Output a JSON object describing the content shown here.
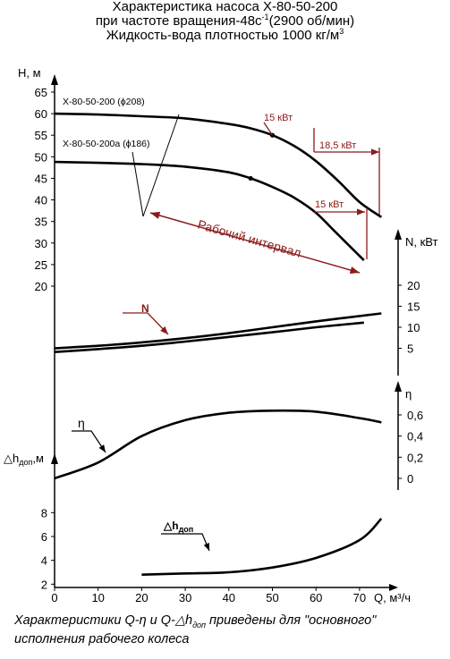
{
  "header": {
    "line1": "Характеристика насоса Х-80-50-200",
    "line2_pre": "при частоте вращения-48с",
    "line2_sup": "-1",
    "line2_post": "(2900 об/мин)",
    "line3_pre": "Жидкость-вода плотностью 1000 кг/м",
    "line3_sup": "3"
  },
  "footnote": {
    "line1_pre": "Характеристики Q-η и Q-△h",
    "line1_sub": "доп",
    "line1_post": " приведены для \"основного\"",
    "line2": "исполнения рабочего колеса"
  },
  "colors": {
    "curve": "#000000",
    "annotation": "#8b1a1a",
    "axis": "#000000"
  },
  "chart_data": {
    "type": "line",
    "x_axis": {
      "label": "Q, м³/ч",
      "range": [
        0,
        80
      ],
      "ticks": [
        0,
        10,
        20,
        30,
        40,
        50,
        60,
        70
      ]
    },
    "panels": [
      {
        "id": "head",
        "axis_label": "H, м",
        "axis_side": "left",
        "range": [
          20,
          65
        ],
        "ticks": [
          20,
          25,
          30,
          35,
          40,
          45,
          50,
          55,
          60,
          65
        ],
        "series": [
          {
            "name": "Х-80-50-200 (ϕ208)",
            "points": [
              [
                0,
                60
              ],
              [
                10,
                59.8
              ],
              [
                20,
                59.4
              ],
              [
                30,
                58.9
              ],
              [
                40,
                57.6
              ],
              [
                45,
                56.6
              ],
              [
                50,
                55
              ],
              [
                55,
                52.5
              ],
              [
                60,
                49
              ],
              [
                65,
                44.5
              ],
              [
                70,
                39.5
              ],
              [
                75,
                36
              ]
            ],
            "marker": [
              50,
              55
            ]
          },
          {
            "name": "Х-80-50-200а (ϕ186)",
            "points": [
              [
                0,
                48.8
              ],
              [
                10,
                48.6
              ],
              [
                20,
                48.3
              ],
              [
                30,
                47.7
              ],
              [
                40,
                46.4
              ],
              [
                45,
                45
              ],
              [
                50,
                43
              ],
              [
                55,
                40.5
              ],
              [
                60,
                37
              ],
              [
                65,
                32
              ],
              [
                71,
                26
              ]
            ],
            "marker": [
              45,
              45
            ]
          }
        ],
        "annotations": {
          "power_15_upper": "15 кВт",
          "power_18_5": "18,5 кВт",
          "power_15_lower": "15 кВт",
          "working_range": "Рабочий интервал"
        }
      },
      {
        "id": "power",
        "axis_label": "N, кВт",
        "axis_side": "right",
        "range": [
          0,
          20
        ],
        "ticks": [
          5,
          10,
          15,
          20
        ],
        "callout": "N",
        "series": [
          {
            "name": "N (ϕ208)",
            "points": [
              [
                0,
                5
              ],
              [
                10,
                5.6
              ],
              [
                20,
                6.4
              ],
              [
                30,
                7.4
              ],
              [
                40,
                8.6
              ],
              [
                50,
                10
              ],
              [
                60,
                11.4
              ],
              [
                75,
                13.3
              ]
            ]
          },
          {
            "name": "N (ϕ186)",
            "points": [
              [
                0,
                4.1
              ],
              [
                10,
                4.8
              ],
              [
                20,
                5.6
              ],
              [
                30,
                6.6
              ],
              [
                40,
                7.7
              ],
              [
                50,
                8.8
              ],
              [
                60,
                10
              ],
              [
                71,
                11.1
              ]
            ]
          }
        ]
      },
      {
        "id": "efficiency",
        "axis_label": "η",
        "axis_side": "right",
        "range": [
          0,
          0.6
        ],
        "ticks": [
          0,
          0.2,
          0.4,
          0.6
        ],
        "tick_labels": [
          "0",
          "0,2",
          "0,4",
          "0,6"
        ],
        "callout": "η",
        "series": [
          {
            "name": "η",
            "points": [
              [
                0,
                0
              ],
              [
                10,
                0.15
              ],
              [
                20,
                0.4
              ],
              [
                30,
                0.55
              ],
              [
                40,
                0.62
              ],
              [
                50,
                0.64
              ],
              [
                60,
                0.63
              ],
              [
                70,
                0.57
              ],
              [
                75,
                0.53
              ]
            ]
          }
        ]
      },
      {
        "id": "npsh",
        "axis_label": "△h",
        "axis_label_sub": "доп",
        "axis_label_unit": ",м",
        "axis_side": "left",
        "range": [
          0,
          9
        ],
        "ticks": [
          2,
          4,
          6,
          8
        ],
        "callout": "△h",
        "callout_sub": "доп",
        "series": [
          {
            "name": "△hдоп",
            "points": [
              [
                20,
                2.8
              ],
              [
                30,
                2.9
              ],
              [
                40,
                3.0
              ],
              [
                50,
                3.4
              ],
              [
                60,
                4.2
              ],
              [
                70,
                5.7
              ],
              [
                75,
                7.5
              ]
            ]
          }
        ]
      }
    ]
  }
}
